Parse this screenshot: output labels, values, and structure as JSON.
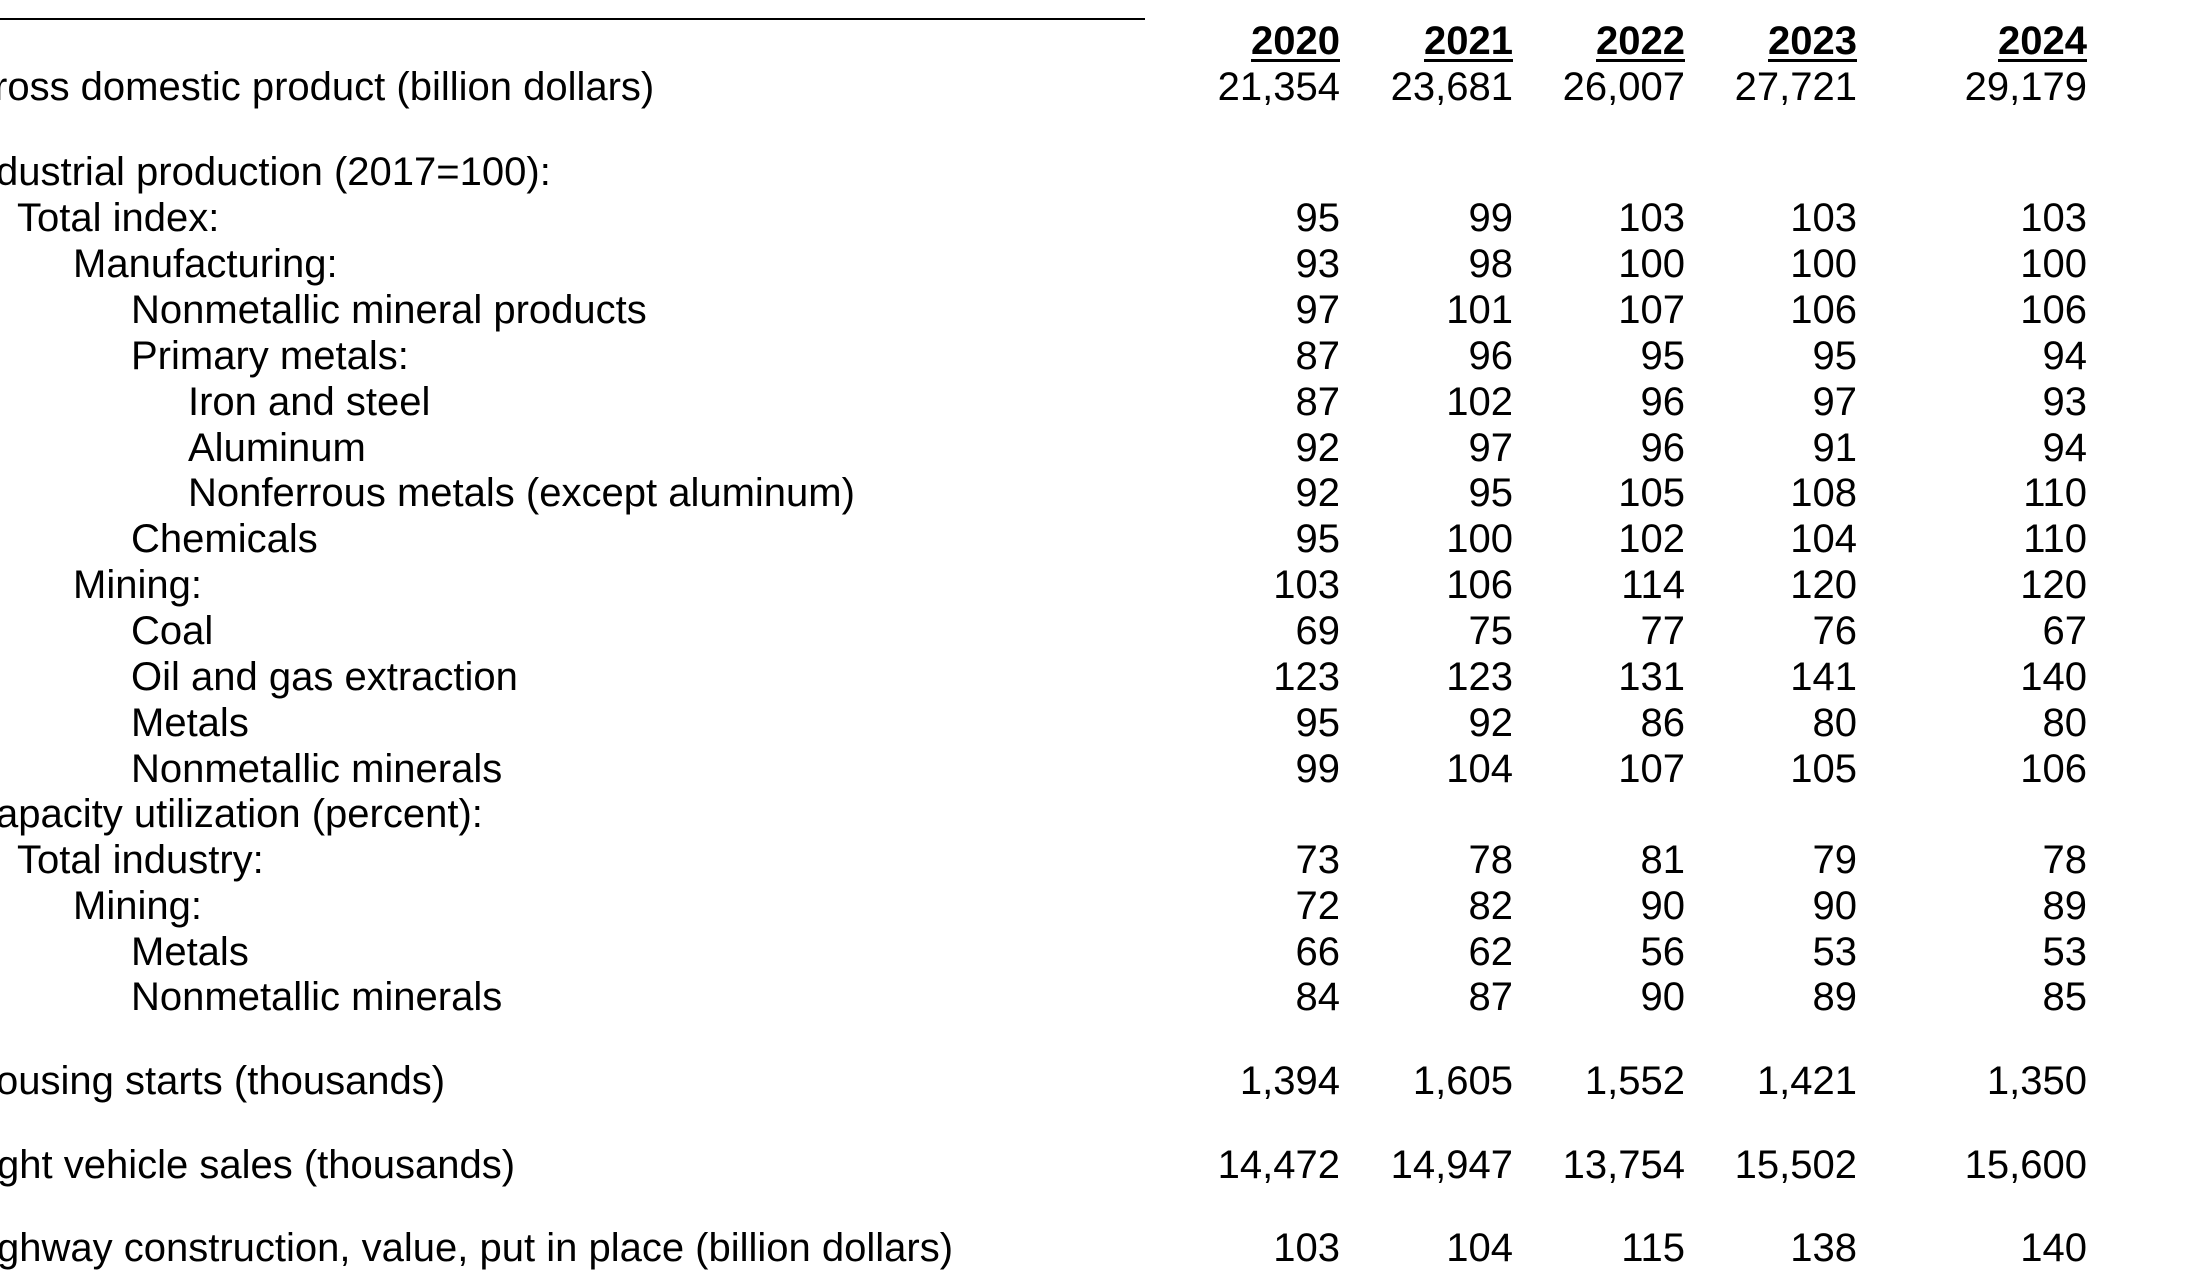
{
  "table": {
    "columns": [
      "2020",
      "2021",
      "2022",
      "2023",
      "2024"
    ],
    "rows": [
      {
        "label": "ross domestic product (billion dollars)",
        "values": [
          "21,354",
          "23,681",
          "26,007",
          "27,721",
          "29,179"
        ]
      },
      {
        "label": "dustrial production (2017=100):",
        "values": []
      },
      {
        "label": "Total index:",
        "values": [
          "95",
          "99",
          "103",
          "103",
          "103"
        ]
      },
      {
        "label": "Manufacturing:",
        "values": [
          "93",
          "98",
          "100",
          "100",
          "100"
        ]
      },
      {
        "label": "Nonmetallic mineral products",
        "values": [
          "97",
          "101",
          "107",
          "106",
          "106"
        ]
      },
      {
        "label": "Primary metals:",
        "values": [
          "87",
          "96",
          "95",
          "95",
          "94"
        ]
      },
      {
        "label": "Iron and steel",
        "values": [
          "87",
          "102",
          "96",
          "97",
          "93"
        ]
      },
      {
        "label": "Aluminum",
        "values": [
          "92",
          "97",
          "96",
          "91",
          "94"
        ]
      },
      {
        "label": "Nonferrous metals (except aluminum)",
        "values": [
          "92",
          "95",
          "105",
          "108",
          "110"
        ]
      },
      {
        "label": "Chemicals",
        "values": [
          "95",
          "100",
          "102",
          "104",
          "110"
        ]
      },
      {
        "label": "Mining:",
        "values": [
          "103",
          "106",
          "114",
          "120",
          "120"
        ]
      },
      {
        "label": "Coal",
        "values": [
          "69",
          "75",
          "77",
          "76",
          "67"
        ]
      },
      {
        "label": "Oil and gas extraction",
        "values": [
          "123",
          "123",
          "131",
          "141",
          "140"
        ]
      },
      {
        "label": "Metals",
        "values": [
          "95",
          "92",
          "86",
          "80",
          "80"
        ]
      },
      {
        "label": "Nonmetallic minerals",
        "values": [
          "99",
          "104",
          "107",
          "105",
          "106"
        ]
      },
      {
        "label": "apacity utilization (percent):",
        "values": []
      },
      {
        "label": "Total industry:",
        "values": [
          "73",
          "78",
          "81",
          "79",
          "78"
        ]
      },
      {
        "label": "Mining:",
        "values": [
          "72",
          "82",
          "90",
          "90",
          "89"
        ]
      },
      {
        "label": "Metals",
        "values": [
          "66",
          "62",
          "56",
          "53",
          "53"
        ]
      },
      {
        "label": "Nonmetallic minerals",
        "values": [
          "84",
          "87",
          "90",
          "89",
          "85"
        ]
      },
      {
        "label": "ousing starts (thousands)",
        "values": [
          "1,394",
          "1,605",
          "1,552",
          "1,421",
          "1,350"
        ]
      },
      {
        "label": "ght vehicle sales (thousands)",
        "values": [
          "14,472",
          "14,947",
          "13,754",
          "15,502",
          "15,600"
        ]
      },
      {
        "label": "ghway construction, value, put in place (billion dollars)",
        "values": [
          "103",
          "104",
          "115",
          "138",
          "140"
        ]
      }
    ]
  }
}
